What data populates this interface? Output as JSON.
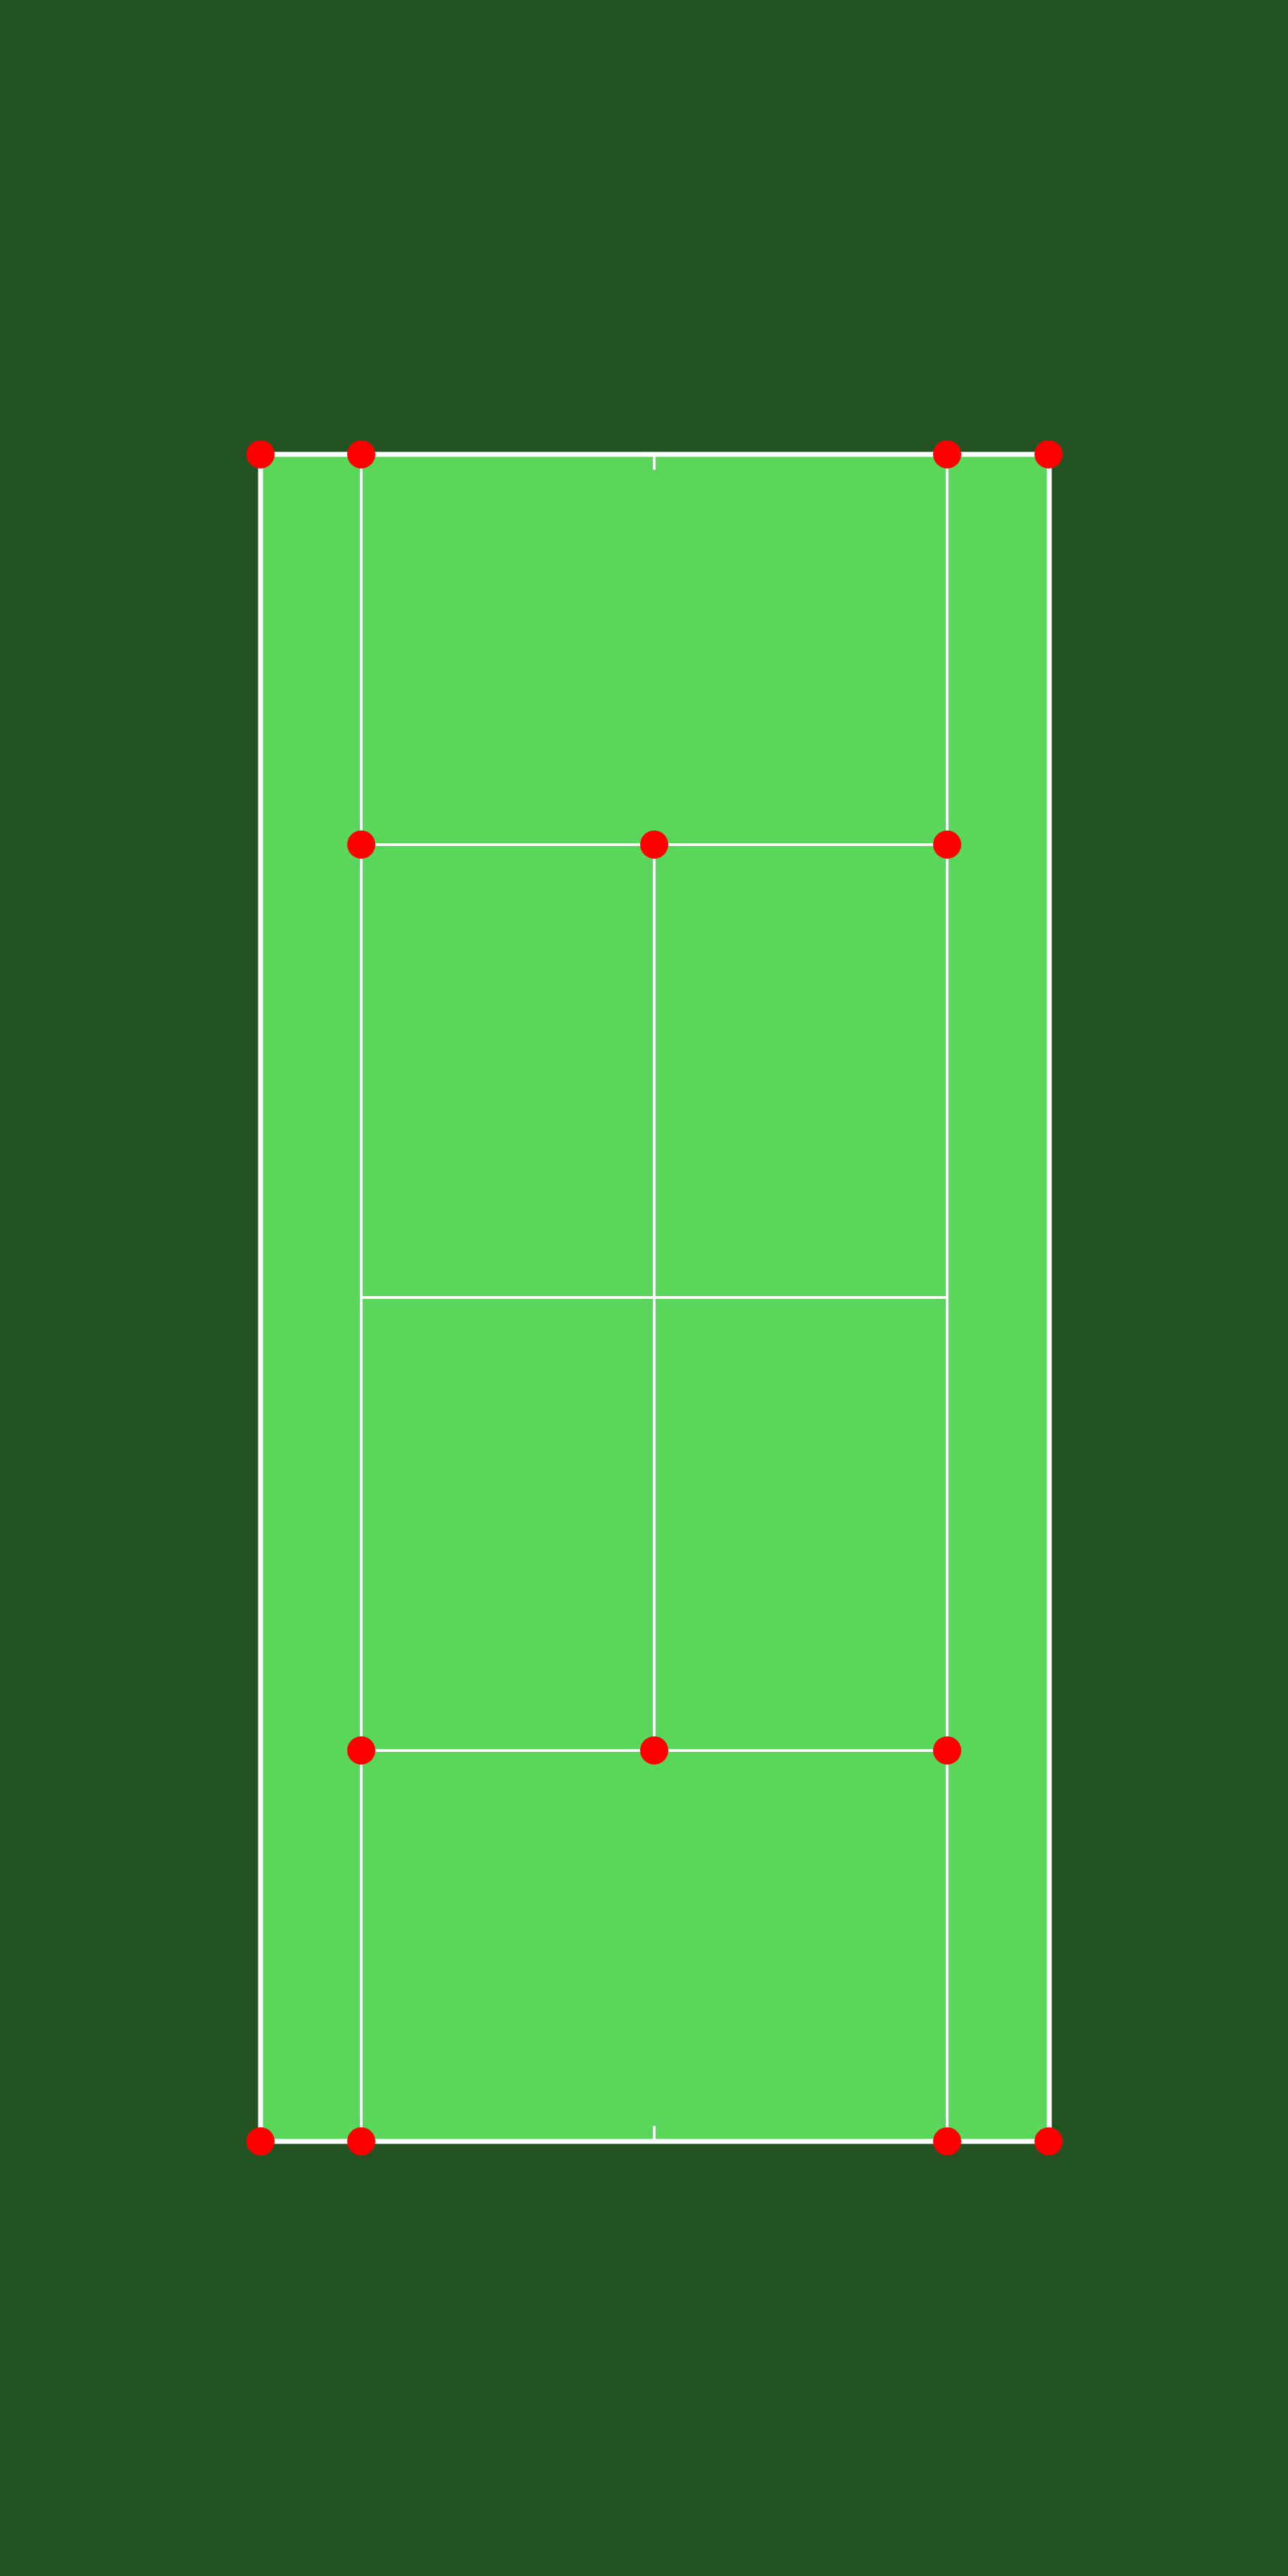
{
  "colors": {
    "background": "#235223",
    "court_surface": "#5AD65A",
    "line": "#FFFFFF",
    "keypoint": "#FF0000"
  },
  "court": {
    "type": "tennis-court",
    "orientation": "vertical",
    "keypoints": [
      {
        "id": "baseline-top-doubles-left"
      },
      {
        "id": "baseline-top-singles-left"
      },
      {
        "id": "baseline-top-singles-right"
      },
      {
        "id": "baseline-top-doubles-right"
      },
      {
        "id": "service-top-left"
      },
      {
        "id": "service-top-center"
      },
      {
        "id": "service-top-right"
      },
      {
        "id": "service-bottom-left"
      },
      {
        "id": "service-bottom-center"
      },
      {
        "id": "service-bottom-right"
      },
      {
        "id": "baseline-bottom-doubles-left"
      },
      {
        "id": "baseline-bottom-singles-left"
      },
      {
        "id": "baseline-bottom-singles-right"
      },
      {
        "id": "baseline-bottom-doubles-right"
      }
    ]
  }
}
